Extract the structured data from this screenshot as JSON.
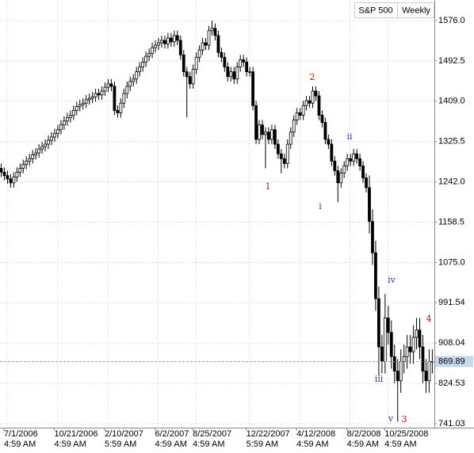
{
  "chart_data": {
    "type": "candlestick",
    "title": "S&P 500",
    "interval": "Weekly",
    "up_color": "#ffffff",
    "down_color": "#000000",
    "grid": true,
    "ylim": [
      732.83,
      1618.65
    ],
    "yticks": [
      {
        "value": 1576,
        "label": "1576.0"
      },
      1492.5,
      {
        "value": 1409,
        "label": "1409.0"
      },
      1325.5,
      {
        "value": 1242,
        "label": "1242.0"
      },
      1158.5,
      {
        "value": 1075,
        "label": "1075.0"
      },
      991.54,
      908.04,
      824.53,
      741.03
    ],
    "last_value": 869.89,
    "categories": [
      null,
      null,
      {
        "date": "7/1/2006",
        "time": "4:59 AM"
      },
      null,
      null,
      null,
      null,
      null,
      null,
      null,
      null,
      null,
      null,
      null,
      null,
      null,
      null,
      null,
      {
        "date": "10/21/2006",
        "time": "4:59 AM"
      },
      null,
      null,
      null,
      null,
      null,
      null,
      null,
      null,
      null,
      null,
      null,
      null,
      null,
      null,
      null,
      {
        "date": "2/10/2007",
        "time": "5:59 AM"
      },
      null,
      null,
      null,
      null,
      null,
      null,
      null,
      null,
      null,
      null,
      null,
      null,
      null,
      null,
      null,
      {
        "date": "6/2/2007",
        "time": "4:59 AM"
      },
      null,
      null,
      null,
      null,
      null,
      null,
      null,
      null,
      null,
      null,
      null,
      {
        "date": "8/25/2007",
        "time": "4:59 AM"
      },
      null,
      null,
      null,
      null,
      null,
      null,
      null,
      null,
      null,
      null,
      null,
      null,
      null,
      null,
      null,
      null,
      {
        "date": "12/22/2007",
        "time": "5:59 AM"
      },
      null,
      null,
      null,
      null,
      null,
      null,
      null,
      null,
      null,
      null,
      null,
      null,
      null,
      null,
      null,
      {
        "date": "4/12/2008",
        "time": "4:59 AM"
      },
      null,
      null,
      null,
      null,
      null,
      null,
      null,
      null,
      null,
      null,
      null,
      null,
      null,
      null,
      null,
      {
        "date": "8/2/2008",
        "time": "4:59 AM"
      },
      null,
      null,
      null,
      null,
      null,
      null,
      null,
      null,
      null,
      null,
      null,
      {
        "date": "10/25/2008",
        "time": "4:59 AM"
      },
      null,
      null,
      null,
      null,
      null,
      null,
      null,
      null,
      null,
      null,
      null,
      null,
      null,
      null
    ],
    "open": [
      1270,
      1262,
      1255,
      1248,
      1240,
      1252,
      1262,
      1270,
      1278,
      1285,
      1290,
      1298,
      1302,
      1310,
      1315,
      1320,
      1328,
      1335,
      1342,
      1350,
      1360,
      1368,
      1375,
      1380,
      1390,
      1398,
      1402,
      1405,
      1412,
      1415,
      1418,
      1425,
      1422,
      1430,
      1438,
      1445,
      1440,
      1390,
      1385,
      1405,
      1425,
      1440,
      1450,
      1455,
      1470,
      1480,
      1490,
      1502,
      1508,
      1520,
      1525,
      1530,
      1535,
      1528,
      1540,
      1532,
      1545,
      1535,
      1505,
      1470,
      1460,
      1445,
      1475,
      1500,
      1515,
      1530,
      1525,
      1555,
      1560,
      1545,
      1510,
      1500,
      1480,
      1460,
      1470,
      1455,
      1480,
      1495,
      1490,
      1470,
      1470,
      1400,
      1330,
      1360,
      1340,
      1345,
      1330,
      1350,
      1320,
      1300,
      1290,
      1280,
      1320,
      1345,
      1370,
      1385,
      1380,
      1400,
      1410,
      1405,
      1430,
      1420,
      1380,
      1365,
      1330,
      1320,
      1285,
      1265,
      1240,
      1260,
      1275,
      1290,
      1285,
      1300,
      1290,
      1275,
      1250,
      1230,
      1160,
      1095,
      1000,
      900,
      870,
      960,
      930,
      880,
      850,
      830,
      870,
      880,
      900,
      890,
      920,
      935,
      900,
      850,
      830,
      870
    ],
    "high": [
      1280,
      1272,
      1265,
      1258,
      1262,
      1272,
      1280,
      1288,
      1295,
      1300,
      1308,
      1312,
      1320,
      1325,
      1330,
      1338,
      1345,
      1352,
      1360,
      1370,
      1378,
      1385,
      1390,
      1400,
      1408,
      1412,
      1415,
      1422,
      1425,
      1428,
      1435,
      1435,
      1440,
      1448,
      1455,
      1455,
      1450,
      1400,
      1415,
      1435,
      1450,
      1460,
      1465,
      1480,
      1490,
      1500,
      1512,
      1518,
      1530,
      1535,
      1540,
      1545,
      1545,
      1550,
      1550,
      1555,
      1555,
      1545,
      1515,
      1480,
      1470,
      1485,
      1510,
      1525,
      1540,
      1540,
      1565,
      1576,
      1570,
      1555,
      1520,
      1510,
      1490,
      1480,
      1480,
      1490,
      1505,
      1505,
      1500,
      1480,
      1480,
      1410,
      1370,
      1370,
      1355,
      1355,
      1360,
      1360,
      1330,
      1310,
      1300,
      1330,
      1355,
      1380,
      1395,
      1395,
      1410,
      1420,
      1420,
      1440,
      1440,
      1430,
      1390,
      1375,
      1340,
      1330,
      1295,
      1275,
      1270,
      1285,
      1300,
      1300,
      1310,
      1310,
      1300,
      1285,
      1260,
      1255,
      1185,
      1120,
      1025,
      925,
      1010,
      985,
      955,
      905,
      875,
      895,
      905,
      925,
      925,
      945,
      960,
      960,
      925,
      875,
      895,
      895
    ],
    "low": [
      1252,
      1245,
      1238,
      1230,
      1230,
      1242,
      1252,
      1260,
      1268,
      1275,
      1280,
      1288,
      1292,
      1300,
      1305,
      1310,
      1318,
      1325,
      1332,
      1340,
      1350,
      1358,
      1365,
      1370,
      1380,
      1388,
      1392,
      1395,
      1402,
      1405,
      1408,
      1412,
      1412,
      1420,
      1428,
      1430,
      1380,
      1375,
      1375,
      1395,
      1415,
      1430,
      1440,
      1445,
      1460,
      1470,
      1480,
      1492,
      1498,
      1510,
      1515,
      1520,
      1518,
      1518,
      1522,
      1522,
      1525,
      1495,
      1460,
      1375,
      1435,
      1435,
      1465,
      1490,
      1505,
      1515,
      1515,
      1545,
      1535,
      1500,
      1490,
      1470,
      1450,
      1450,
      1445,
      1445,
      1470,
      1480,
      1460,
      1460,
      1390,
      1320,
      1320,
      1330,
      1270,
      1320,
      1320,
      1310,
      1290,
      1260,
      1270,
      1270,
      1310,
      1335,
      1360,
      1370,
      1370,
      1390,
      1395,
      1395,
      1410,
      1370,
      1355,
      1320,
      1310,
      1275,
      1255,
      1200,
      1230,
      1250,
      1265,
      1275,
      1275,
      1280,
      1265,
      1240,
      1220,
      1135,
      1070,
      975,
      840,
      845,
      845,
      905,
      855,
      825,
      745,
      805,
      845,
      855,
      865,
      865,
      895,
      875,
      825,
      805,
      805,
      845
    ],
    "close": [
      1262,
      1255,
      1248,
      1240,
      1252,
      1262,
      1270,
      1278,
      1285,
      1290,
      1298,
      1302,
      1310,
      1315,
      1320,
      1328,
      1335,
      1342,
      1350,
      1360,
      1368,
      1375,
      1380,
      1390,
      1398,
      1402,
      1405,
      1412,
      1415,
      1418,
      1425,
      1422,
      1430,
      1438,
      1445,
      1440,
      1390,
      1385,
      1405,
      1425,
      1440,
      1450,
      1455,
      1470,
      1480,
      1490,
      1502,
      1508,
      1520,
      1525,
      1530,
      1535,
      1528,
      1540,
      1532,
      1545,
      1535,
      1505,
      1470,
      1460,
      1445,
      1475,
      1500,
      1515,
      1530,
      1525,
      1555,
      1560,
      1545,
      1510,
      1500,
      1480,
      1460,
      1470,
      1455,
      1480,
      1495,
      1490,
      1470,
      1470,
      1400,
      1330,
      1360,
      1340,
      1345,
      1330,
      1350,
      1320,
      1300,
      1290,
      1280,
      1320,
      1345,
      1370,
      1385,
      1380,
      1400,
      1410,
      1405,
      1430,
      1420,
      1380,
      1365,
      1330,
      1320,
      1285,
      1265,
      1240,
      1260,
      1275,
      1290,
      1285,
      1300,
      1290,
      1275,
      1250,
      1230,
      1160,
      1095,
      1000,
      900,
      870,
      960,
      930,
      880,
      850,
      830,
      870,
      880,
      900,
      890,
      920,
      935,
      900,
      850,
      830,
      870,
      869.89
    ],
    "annotations": [
      {
        "text": "1",
        "color": "#cc0000"
      },
      {
        "text": "2",
        "color": "#cc0000"
      },
      {
        "text": "i",
        "color": "#333399"
      },
      {
        "text": "ii",
        "color": "#333399"
      },
      {
        "text": "iii",
        "color": "#333399"
      },
      {
        "text": "iv",
        "color": "#333399"
      },
      {
        "text": "v",
        "color": "#333399"
      },
      {
        "text": "3",
        "color": "#cc0000"
      },
      {
        "text": "4",
        "color": "#cc0000"
      }
    ]
  }
}
